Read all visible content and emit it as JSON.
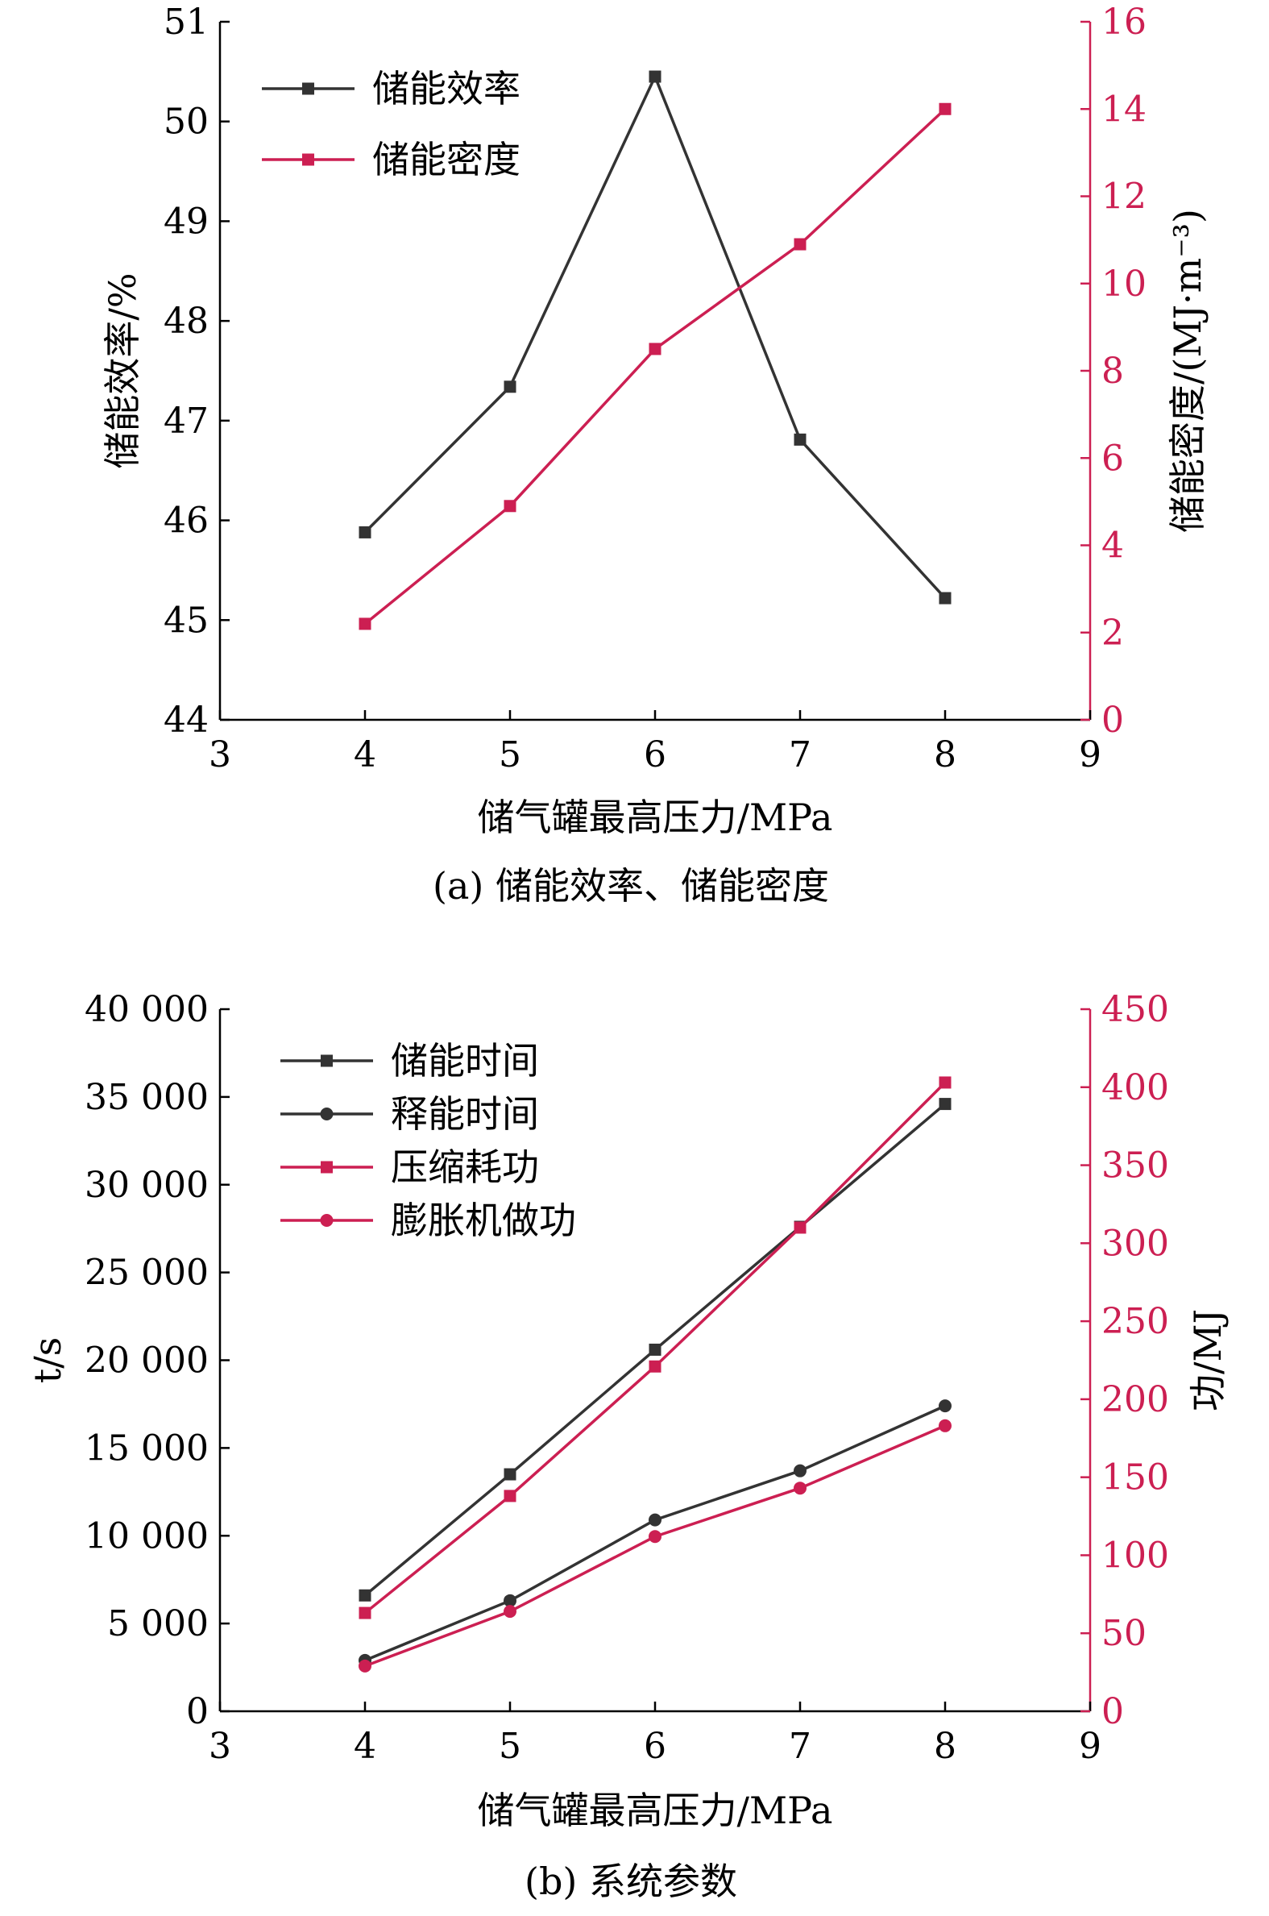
{
  "colors": {
    "axis": "#000000",
    "gray": "#333333",
    "red": "#cc1f52"
  },
  "chart_data": [
    {
      "id": "a",
      "type": "line",
      "caption": "(a) 储能效率、储能密度",
      "xlabel": "储气罐最高压力/MPa",
      "ylabel_left": "储能效率/%",
      "ylabel_right": "储能密度/(MJ·m⁻³)",
      "xlim": [
        3,
        9
      ],
      "xticks": [
        "3",
        "4",
        "5",
        "6",
        "7",
        "8",
        "9"
      ],
      "ylim_left": [
        44,
        51
      ],
      "yticks_left": [
        "44",
        "45",
        "46",
        "47",
        "48",
        "49",
        "50",
        "51"
      ],
      "ylim_right": [
        0,
        16
      ],
      "yticks_right": [
        "0",
        "2",
        "4",
        "6",
        "8",
        "10",
        "12",
        "14",
        "16"
      ],
      "x": [
        4,
        5,
        6,
        7,
        8
      ],
      "legend_position": "top-left",
      "series": [
        {
          "name": "储能效率",
          "axis": "left",
          "marker": "square",
          "color": "gray",
          "values": [
            45.88,
            47.34,
            50.45,
            46.81,
            45.22
          ]
        },
        {
          "name": "储能密度",
          "axis": "right",
          "marker": "square",
          "color": "red",
          "values": [
            2.2,
            4.9,
            8.5,
            10.9,
            14.0
          ]
        }
      ]
    },
    {
      "id": "b",
      "type": "line",
      "caption": "(b) 系统参数",
      "xlabel": "储气罐最高压力/MPa",
      "ylabel_left": "t/s",
      "ylabel_right": "功/MJ",
      "xlim": [
        3,
        9
      ],
      "xticks": [
        "3",
        "4",
        "5",
        "6",
        "7",
        "8",
        "9"
      ],
      "ylim_left": [
        0,
        40000
      ],
      "yticks_left": [
        "0",
        "5 000",
        "10 000",
        "15 000",
        "20 000",
        "25 000",
        "30 000",
        "35 000",
        "40 000"
      ],
      "ylim_right": [
        0,
        450
      ],
      "yticks_right": [
        "0",
        "50",
        "100",
        "150",
        "200",
        "250",
        "300",
        "350",
        "400",
        "450"
      ],
      "x": [
        4,
        5,
        6,
        7,
        8
      ],
      "legend_position": "top-left",
      "series": [
        {
          "name": "储能时间",
          "axis": "left",
          "marker": "square",
          "color": "gray",
          "values": [
            6600,
            13500,
            20600,
            27600,
            34600
          ]
        },
        {
          "name": "释能时间",
          "axis": "left",
          "marker": "circle",
          "color": "gray",
          "values": [
            2900,
            6300,
            10900,
            13700,
            17400
          ]
        },
        {
          "name": "压缩耗功",
          "axis": "right",
          "marker": "square",
          "color": "red",
          "values": [
            63,
            138,
            221,
            310,
            403
          ]
        },
        {
          "name": "膨胀机做功",
          "axis": "right",
          "marker": "circle",
          "color": "red",
          "values": [
            29,
            64,
            112,
            143,
            183
          ]
        }
      ]
    }
  ]
}
